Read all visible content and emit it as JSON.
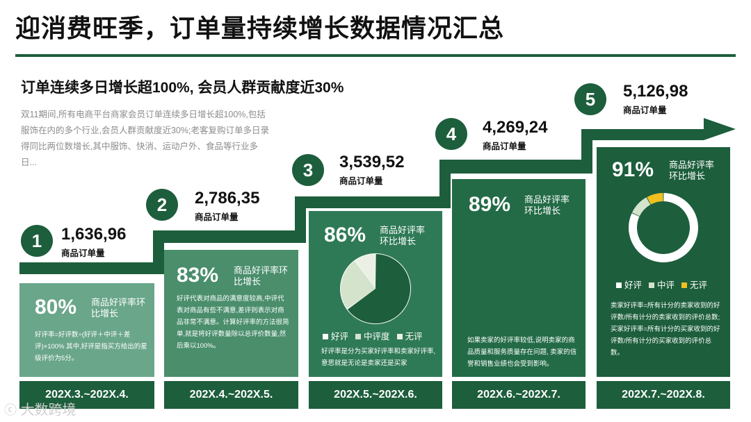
{
  "title": "迎消费旺季，订单量持续增长数据情况汇总",
  "subtitle": "订单连续多日增长超100%, 会员人群贡献度近30%",
  "description": "双11期间,所有电商平台商家会员订单连续多日增长超100%,包括服饰在内的多个行业,会员人群贡献度近30%;老客复购订单多日录得同比两位数增长,其中服饰、快消、运动户外、食品等行业多日...",
  "watermark": "大数跨境",
  "colors": {
    "dark_green": "#1d5e3c",
    "mid_green": "#2f7a56",
    "light_green": "#6aa68a",
    "pale_green": "#d4e3cc",
    "yellow": "#f0c020"
  },
  "steps": [
    {
      "num": "1",
      "value": "1,636,96",
      "unit": "商品订单量",
      "pct": "80%",
      "label": "商品好评率环比增长",
      "text": "好评率=好评数÷(好评＋中评＋差评)×100% 其中,好评是指买方给出的星级评价为5分。",
      "period": "202X.3.~202X.4."
    },
    {
      "num": "2",
      "value": "2,786,35",
      "unit": "商品订单量",
      "pct": "83%",
      "label": "商品好评率环比增长",
      "text": "好评代表对商品的满意度较高,中评代表对商品有些不满意,差评则表示对商品非常不满意。计算好评率的方法很简单,就是将好评数量除以总评价数量,然后乘以100%。",
      "period": "202X.4.~202X.5."
    },
    {
      "num": "3",
      "value": "3,539,52",
      "unit": "商品订单量",
      "pct": "86%",
      "label": "商品好评率环比增长",
      "legend": [
        "好评",
        "中评度",
        "无评"
      ],
      "text": "好评率是分为买家好评率和卖家好评率,意思就是无论是卖家还是买家",
      "period": "202X.5.~202X.6."
    },
    {
      "num": "4",
      "value": "4,269,24",
      "unit": "商品订单量",
      "pct": "89%",
      "label": "商品好评率环比增长",
      "text": "如果卖家的好评率较低,说明卖家的商品质量和服务质量存在问题, 卖家的信誉和销售业绩也会受到影响。",
      "period": "202X.6.~202X.7."
    },
    {
      "num": "5",
      "value": "5,126,98",
      "unit": "商品订单量",
      "pct": "91%",
      "label": "商品好评率环比增长",
      "legend": [
        "好评",
        "中评",
        "无评"
      ],
      "text": "卖家好评率=所有计分的卖家收到的好评数/所有计分的卖家收到的评价总数; 买家好评率=所有计分的买家收到的好评数/所有计分的买家收到的评价总数。",
      "period": "202X.7.~202X.8."
    }
  ],
  "chart_data": [
    {
      "type": "pie",
      "categories": [
        "好评",
        "中评度",
        "无评"
      ],
      "values": [
        65,
        25,
        10
      ]
    },
    {
      "type": "pie",
      "categories": [
        "好评",
        "中评",
        "无评"
      ],
      "values": [
        82,
        10,
        8
      ]
    }
  ]
}
